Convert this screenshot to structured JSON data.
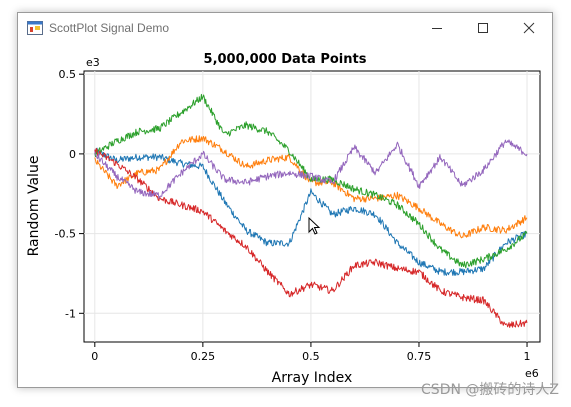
{
  "window": {
    "title": "ScottPlot Signal Demo",
    "controls": [
      "minimize",
      "maximize",
      "close"
    ]
  },
  "watermark": "CSDN @搬砖的诗人Z",
  "chart_data": {
    "type": "line",
    "title": "5,000,000 Data Points",
    "xlabel": "Array Index",
    "ylabel": "Random Value",
    "x_multiplier_label": "e6",
    "y_multiplier_label": "e3",
    "xlim": [
      -0.025,
      1.03
    ],
    "ylim": [
      -1.18,
      0.52
    ],
    "x_ticks": [
      0,
      0.25,
      0.5,
      0.75,
      1
    ],
    "x_tick_labels": [
      "0",
      "0.25",
      "0.5",
      "0.75",
      "1"
    ],
    "y_ticks": [
      0.5,
      0,
      -0.5,
      -1
    ],
    "y_tick_labels": [
      "0.5",
      "0",
      "-0.5",
      "-1"
    ],
    "grid": true,
    "x": [
      0,
      0.05,
      0.1,
      0.15,
      0.2,
      0.25,
      0.3,
      0.35,
      0.4,
      0.45,
      0.5,
      0.55,
      0.6,
      0.65,
      0.7,
      0.75,
      0.8,
      0.85,
      0.9,
      0.95,
      1
    ],
    "series": [
      {
        "color": "#1f77b4",
        "values": [
          0.02,
          -0.04,
          -0.02,
          -0.02,
          -0.06,
          -0.08,
          -0.3,
          -0.48,
          -0.56,
          -0.56,
          -0.24,
          -0.38,
          -0.34,
          -0.38,
          -0.56,
          -0.68,
          -0.74,
          -0.74,
          -0.72,
          -0.56,
          -0.5
        ]
      },
      {
        "color": "#ff7f0e",
        "values": [
          -0.04,
          -0.2,
          -0.12,
          -0.1,
          0.08,
          0.1,
          0.02,
          -0.08,
          -0.04,
          -0.02,
          -0.18,
          -0.18,
          -0.28,
          -0.28,
          -0.26,
          -0.34,
          -0.44,
          -0.52,
          -0.46,
          -0.48,
          -0.4
        ]
      },
      {
        "color": "#2ca02c",
        "values": [
          0.0,
          0.08,
          0.14,
          0.16,
          0.26,
          0.36,
          0.12,
          0.18,
          0.14,
          0.02,
          -0.16,
          -0.16,
          -0.22,
          -0.26,
          -0.32,
          -0.44,
          -0.6,
          -0.7,
          -0.66,
          -0.6,
          -0.5
        ]
      },
      {
        "color": "#d62728",
        "values": [
          0.02,
          -0.06,
          -0.16,
          -0.28,
          -0.32,
          -0.36,
          -0.48,
          -0.58,
          -0.74,
          -0.88,
          -0.82,
          -0.86,
          -0.7,
          -0.68,
          -0.72,
          -0.74,
          -0.86,
          -0.9,
          -0.92,
          -1.08,
          -1.06
        ]
      },
      {
        "color": "#9467bd",
        "values": [
          0.0,
          -0.14,
          -0.24,
          -0.26,
          -0.12,
          0.0,
          -0.16,
          -0.18,
          -0.14,
          -0.12,
          -0.14,
          -0.18,
          0.04,
          -0.12,
          0.06,
          -0.2,
          -0.02,
          -0.2,
          -0.1,
          0.08,
          0.0
        ]
      }
    ]
  }
}
